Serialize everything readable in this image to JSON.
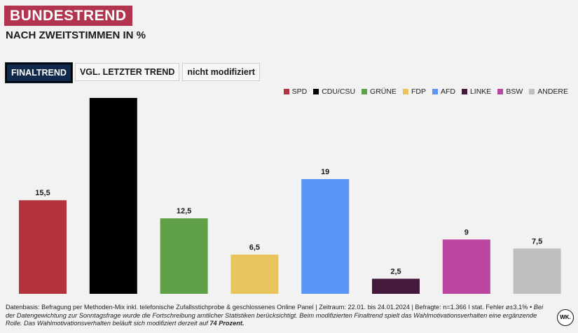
{
  "header": {
    "title": "BUNDESTREND",
    "subtitle": "NACH ZWEITSTIMMEN IN %"
  },
  "tabs": [
    {
      "label": "FINALTREND",
      "active": true
    },
    {
      "label": "VGL. LETZTER TREND",
      "active": false
    },
    {
      "label": "nicht modifiziert",
      "active": false
    }
  ],
  "chart_data": {
    "type": "bar",
    "categories": [
      "SPD",
      "CDU/CSU",
      "GRÜNE",
      "FDP",
      "AFD",
      "LINKE",
      "BSW",
      "ANDERE"
    ],
    "values": [
      15.5,
      32.5,
      12.5,
      6.5,
      19,
      2.5,
      9,
      7.5
    ],
    "data_labels": [
      "15,5",
      "",
      "12,5",
      "6,5",
      "19",
      "2,5",
      "9",
      "7,5"
    ],
    "colors": [
      "#b2333b",
      "#000000",
      "#60a046",
      "#e8c45c",
      "#5b94f7",
      "#44193c",
      "#bb46a0",
      "#bfbfbf"
    ],
    "legend": "top-right",
    "grid": false
  },
  "footer": {
    "text_plain": "Datenbasis: Befragung per Methoden-Mix inkl. telefonische Zufallsstichprobe & geschlossenes Online Panel | Zeitraum: 22.01. bis 24.01.2024 | Befragte: n=1.366 I stat. Fehler ⌀±3,1% •",
    "text_italic": " Bei der Datengewichtung zur Sonntagsfrage wurde die Fortschreibung amtlicher Statistiken berücksichtigt. Beim modifizierten Finaltrend spielt das Wahlmotivationsverhalten eine ergänzende Rolle. Das Wahlmotivationsverhalten beläuft sich modifiziert derzeit auf ",
    "text_bold": "74 Prozent."
  },
  "badge": "WK."
}
